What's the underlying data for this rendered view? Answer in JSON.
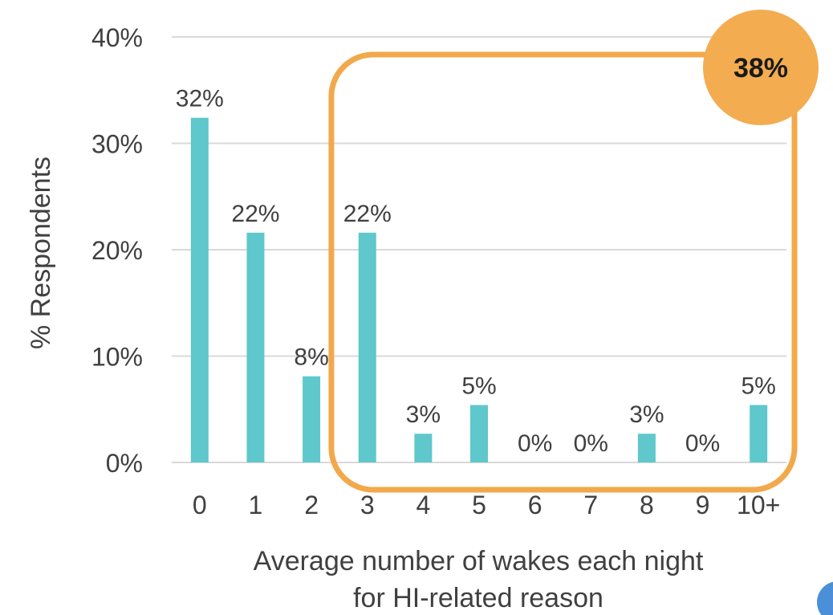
{
  "chart_data": {
    "type": "bar",
    "categories": [
      "0",
      "1",
      "2",
      "3",
      "4",
      "5",
      "6",
      "7",
      "8",
      "9",
      "10+"
    ],
    "values": [
      32.4,
      21.6,
      8.1,
      21.6,
      2.7,
      5.4,
      0,
      0,
      2.7,
      0,
      5.4
    ],
    "data_labels": [
      "32%",
      "22%",
      "8%",
      "22%",
      "3%",
      "5%",
      "0%",
      "0%",
      "3%",
      "0%",
      "5%"
    ],
    "title": "",
    "xlabel_line1": "Average number of wakes each night",
    "xlabel_line2": "for HI-related reason",
    "ylabel": "% Respondents",
    "ylim": [
      0,
      40
    ],
    "yticks": [
      0,
      10,
      20,
      30,
      40
    ],
    "ytick_labels": [
      "0%",
      "10%",
      "20%",
      "30%",
      "40%"
    ],
    "grid": true,
    "legend": "none",
    "bar_color": "#5ec8cc",
    "highlight": {
      "categories": [
        "3",
        "4",
        "5",
        "6",
        "7",
        "8",
        "9",
        "10+"
      ],
      "label": "38%",
      "outline_color": "#f2a94b",
      "badge_color": "#f3ac50"
    }
  }
}
